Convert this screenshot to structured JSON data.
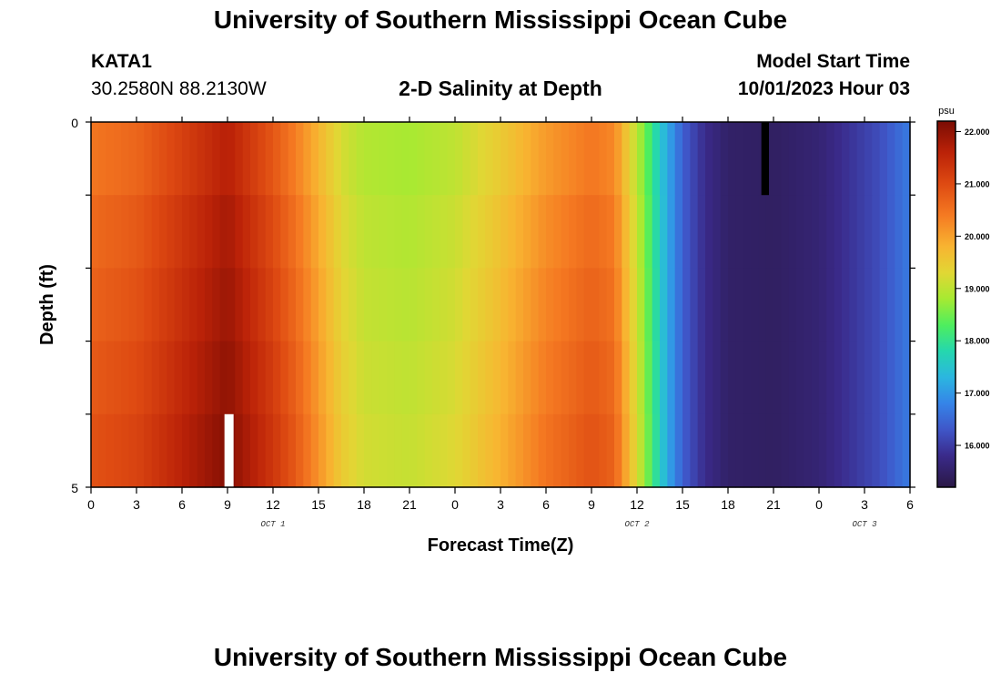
{
  "page": {
    "title_top": "University of Southern Mississippi Ocean Cube",
    "title_bottom": "University of Southern Mississippi Ocean Cube",
    "station_id": "KATA1",
    "station_coords": "30.2580N  88.2130W",
    "plot_title": "2-D Salinity at Depth",
    "model_start_label": "Model Start Time",
    "model_start_value": "10/01/2023 Hour 03"
  },
  "chart_data": {
    "type": "heatmap",
    "title": "2-D Salinity at Depth",
    "xlabel": "Forecast Time(Z)",
    "ylabel": "Depth (ft)",
    "x_hours": [
      0,
      54
    ],
    "y_range": [
      0,
      5
    ],
    "x_tick_hours": [
      0,
      3,
      6,
      9,
      12,
      15,
      18,
      21,
      24,
      27,
      30,
      33,
      36,
      39,
      42,
      45,
      48,
      51,
      54
    ],
    "x_tick_labels": [
      "0",
      "3",
      "6",
      "9",
      "12",
      "15",
      "18",
      "21",
      "0",
      "3",
      "6",
      "9",
      "12",
      "15",
      "18",
      "21",
      "0",
      "3",
      "6"
    ],
    "y_tick_labels": [
      "0",
      "5"
    ],
    "day_labels": [
      {
        "hour": 12,
        "text": "OCT 1"
      },
      {
        "hour": 36,
        "text": "OCT 2"
      },
      {
        "hour": 51,
        "text": "OCT 3"
      }
    ],
    "depth_levels": 5,
    "salinity_profile": [
      {
        "hour": 0,
        "psu": 20.6
      },
      {
        "hour": 3,
        "psu": 20.8
      },
      {
        "hour": 6,
        "psu": 21.3
      },
      {
        "hour": 9,
        "psu": 21.8
      },
      {
        "hour": 10.5,
        "psu": 21.4
      },
      {
        "hour": 12,
        "psu": 21.0
      },
      {
        "hour": 13.5,
        "psu": 20.5
      },
      {
        "hour": 15,
        "psu": 19.9
      },
      {
        "hour": 16.5,
        "psu": 19.3
      },
      {
        "hour": 18,
        "psu": 19.0
      },
      {
        "hour": 21,
        "psu": 18.9
      },
      {
        "hour": 24,
        "psu": 19.1
      },
      {
        "hour": 27,
        "psu": 19.6
      },
      {
        "hour": 30,
        "psu": 20.2
      },
      {
        "hour": 33,
        "psu": 20.6
      },
      {
        "hour": 34.5,
        "psu": 20.4
      },
      {
        "hour": 35.5,
        "psu": 19.5
      },
      {
        "hour": 36.5,
        "psu": 18.6
      },
      {
        "hour": 37.5,
        "psu": 17.6
      },
      {
        "hour": 39,
        "psu": 16.4
      },
      {
        "hour": 40.5,
        "psu": 15.8
      },
      {
        "hour": 42,
        "psu": 15.5
      },
      {
        "hour": 45,
        "psu": 15.45
      },
      {
        "hour": 48,
        "psu": 15.6
      },
      {
        "hour": 50,
        "psu": 15.9
      },
      {
        "hour": 52,
        "psu": 16.2
      },
      {
        "hour": 54,
        "psu": 16.7
      }
    ],
    "depth_adjust_psu": [
      -0.15,
      0.0,
      0.1,
      0.2,
      0.3
    ],
    "colorbar": {
      "unit": "psu",
      "range": [
        15.2,
        22.2
      ],
      "ticks": [
        "22.000",
        "21.000",
        "20.000",
        "19.000",
        "18.000",
        "17.000",
        "16.000"
      ],
      "stops": [
        {
          "v": 15.2,
          "c": "#2a1845"
        },
        {
          "v": 15.8,
          "c": "#3a2a8a"
        },
        {
          "v": 16.3,
          "c": "#3f56c8"
        },
        {
          "v": 16.8,
          "c": "#3584e8"
        },
        {
          "v": 17.3,
          "c": "#2bb6e0"
        },
        {
          "v": 17.8,
          "c": "#25d7ae"
        },
        {
          "v": 18.3,
          "c": "#4eee5e"
        },
        {
          "v": 18.8,
          "c": "#a6ea32"
        },
        {
          "v": 19.3,
          "c": "#e1d734"
        },
        {
          "v": 19.8,
          "c": "#f8b431"
        },
        {
          "v": 20.4,
          "c": "#f57a22"
        },
        {
          "v": 21.0,
          "c": "#de4a12"
        },
        {
          "v": 21.6,
          "c": "#bb2208"
        },
        {
          "v": 22.2,
          "c": "#7a0c03"
        }
      ]
    },
    "markers": [
      {
        "name": "white",
        "color": "#ffffff",
        "hour": 8.8,
        "hour_end": 9.4,
        "depth_level": 4
      },
      {
        "name": "black",
        "color": "#000000",
        "hour": 44.2,
        "hour_end": 44.7,
        "depth_level": 0
      }
    ]
  }
}
